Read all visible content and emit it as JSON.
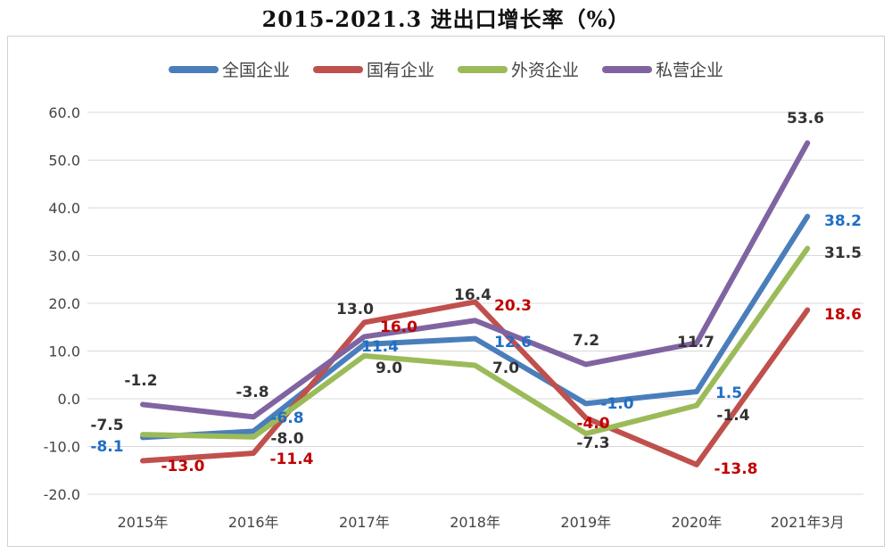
{
  "chart_data": {
    "type": "line",
    "title": "2015-2021.3 进出口增长率（%）",
    "categories": [
      "2015年",
      "2016年",
      "2017年",
      "2018年",
      "2019年",
      "2020年",
      "2021年3月"
    ],
    "ylim": [
      -20,
      60
    ],
    "yticks": [
      "60.0",
      "50.0",
      "40.0",
      "30.0",
      "20.0",
      "10.0",
      "0.0",
      "-10.0",
      "-20.0"
    ],
    "grid": true,
    "legend_position": "top",
    "series": [
      {
        "name": "全国企业",
        "color": "#4a7ebb",
        "label_color": "#1f6fc5",
        "values": [
          -8.1,
          -6.8,
          11.4,
          12.6,
          -1.0,
          1.5,
          38.2
        ],
        "labels": [
          "-8.1",
          "-6.8",
          "11.4",
          "12.6",
          "-1.0",
          "1.5",
          "38.2"
        ]
      },
      {
        "name": "国有企业",
        "color": "#c0504d",
        "label_color": "#c00000",
        "values": [
          -13.0,
          -11.4,
          16.0,
          20.3,
          -4.0,
          -13.8,
          18.6
        ],
        "labels": [
          "-13.0",
          "-11.4",
          "16.0",
          "20.3",
          "-4.0",
          "-13.8",
          "18.6"
        ]
      },
      {
        "name": "外资企业",
        "color": "#9bbb59",
        "label_color": "#333333",
        "values": [
          -7.5,
          -8.0,
          9.0,
          7.0,
          -7.3,
          -1.4,
          31.5
        ],
        "labels": [
          "-7.5",
          "-8.0",
          "9.0",
          "7.0",
          "-7.3",
          "-1.4",
          "31.5"
        ]
      },
      {
        "name": "私营企业",
        "color": "#8064a2",
        "label_color": "#333333",
        "values": [
          -1.2,
          -3.8,
          13.0,
          16.4,
          7.2,
          11.7,
          53.6
        ],
        "labels": [
          "-1.2",
          "-3.8",
          "13.0",
          "16.4",
          "7.2",
          "11.7",
          "53.6"
        ]
      }
    ]
  }
}
